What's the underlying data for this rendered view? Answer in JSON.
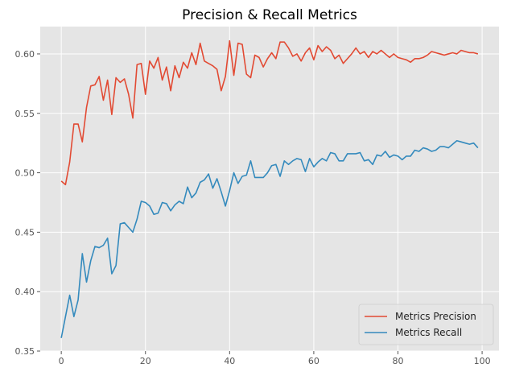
{
  "chart_data": {
    "type": "line",
    "title": "Precision & Recall Metrics",
    "xlabel": "",
    "ylabel": "",
    "xlim": [
      -5,
      104
    ],
    "ylim": [
      0.35,
      0.623
    ],
    "x_ticks": [
      0,
      20,
      40,
      60,
      80,
      100
    ],
    "y_ticks": [
      0.35,
      0.4,
      0.45,
      0.5,
      0.55,
      0.6
    ],
    "x_tick_labels": [
      "0",
      "20",
      "40",
      "60",
      "80",
      "100"
    ],
    "y_tick_labels": [
      "0.35",
      "0.40",
      "0.45",
      "0.50",
      "0.55",
      "0.60"
    ],
    "grid": true,
    "legend_position": "bottom-right",
    "x": [
      0,
      1,
      2,
      3,
      4,
      5,
      6,
      7,
      8,
      9,
      10,
      11,
      12,
      13,
      14,
      15,
      16,
      17,
      18,
      19,
      20,
      21,
      22,
      23,
      24,
      25,
      26,
      27,
      28,
      29,
      30,
      31,
      32,
      33,
      34,
      35,
      36,
      37,
      38,
      39,
      40,
      41,
      42,
      43,
      44,
      45,
      46,
      47,
      48,
      49,
      50,
      51,
      52,
      53,
      54,
      55,
      56,
      57,
      58,
      59,
      60,
      61,
      62,
      63,
      64,
      65,
      66,
      67,
      68,
      69,
      70,
      71,
      72,
      73,
      74,
      75,
      76,
      77,
      78,
      79,
      80,
      81,
      82,
      83,
      84,
      85,
      86,
      87,
      88,
      89,
      90,
      91,
      92,
      93,
      94,
      95,
      96,
      97,
      98,
      99
    ],
    "series": [
      {
        "name": "Metrics Precision",
        "color": "#e24a33",
        "values": [
          0.493,
          0.49,
          0.509,
          0.541,
          0.541,
          0.526,
          0.555,
          0.573,
          0.574,
          0.581,
          0.561,
          0.578,
          0.549,
          0.58,
          0.576,
          0.579,
          0.566,
          0.546,
          0.591,
          0.592,
          0.566,
          0.594,
          0.588,
          0.597,
          0.578,
          0.589,
          0.569,
          0.59,
          0.58,
          0.593,
          0.588,
          0.601,
          0.591,
          0.609,
          0.594,
          0.592,
          0.59,
          0.587,
          0.569,
          0.581,
          0.611,
          0.582,
          0.609,
          0.608,
          0.583,
          0.58,
          0.599,
          0.597,
          0.589,
          0.596,
          0.601,
          0.596,
          0.61,
          0.61,
          0.605,
          0.598,
          0.6,
          0.594,
          0.601,
          0.605,
          0.595,
          0.607,
          0.602,
          0.606,
          0.603,
          0.596,
          0.599,
          0.592,
          0.596,
          0.6,
          0.605,
          0.6,
          0.602,
          0.597,
          0.602,
          0.6,
          0.603,
          0.6,
          0.597,
          0.6,
          0.597,
          0.596,
          0.595,
          0.593,
          0.596,
          0.596,
          0.597,
          0.599,
          0.602,
          0.601,
          0.6,
          0.599,
          0.6,
          0.601,
          0.6,
          0.603,
          0.602,
          0.601,
          0.601,
          0.6
        ]
      },
      {
        "name": "Metrics Recall",
        "color": "#348abd",
        "values": [
          0.361,
          0.379,
          0.397,
          0.379,
          0.393,
          0.432,
          0.408,
          0.426,
          0.438,
          0.437,
          0.439,
          0.445,
          0.415,
          0.422,
          0.457,
          0.458,
          0.454,
          0.45,
          0.461,
          0.476,
          0.475,
          0.472,
          0.465,
          0.466,
          0.475,
          0.474,
          0.468,
          0.473,
          0.476,
          0.474,
          0.488,
          0.479,
          0.483,
          0.492,
          0.494,
          0.499,
          0.487,
          0.495,
          0.484,
          0.472,
          0.485,
          0.5,
          0.491,
          0.497,
          0.498,
          0.51,
          0.496,
          0.496,
          0.496,
          0.5,
          0.506,
          0.507,
          0.497,
          0.51,
          0.507,
          0.51,
          0.512,
          0.511,
          0.501,
          0.512,
          0.505,
          0.509,
          0.512,
          0.51,
          0.517,
          0.516,
          0.51,
          0.51,
          0.516,
          0.516,
          0.516,
          0.517,
          0.51,
          0.511,
          0.507,
          0.515,
          0.514,
          0.518,
          0.513,
          0.515,
          0.514,
          0.511,
          0.514,
          0.514,
          0.519,
          0.518,
          0.521,
          0.52,
          0.518,
          0.519,
          0.522,
          0.522,
          0.521,
          0.524,
          0.527,
          0.526,
          0.525,
          0.524,
          0.525,
          0.521
        ]
      }
    ]
  }
}
